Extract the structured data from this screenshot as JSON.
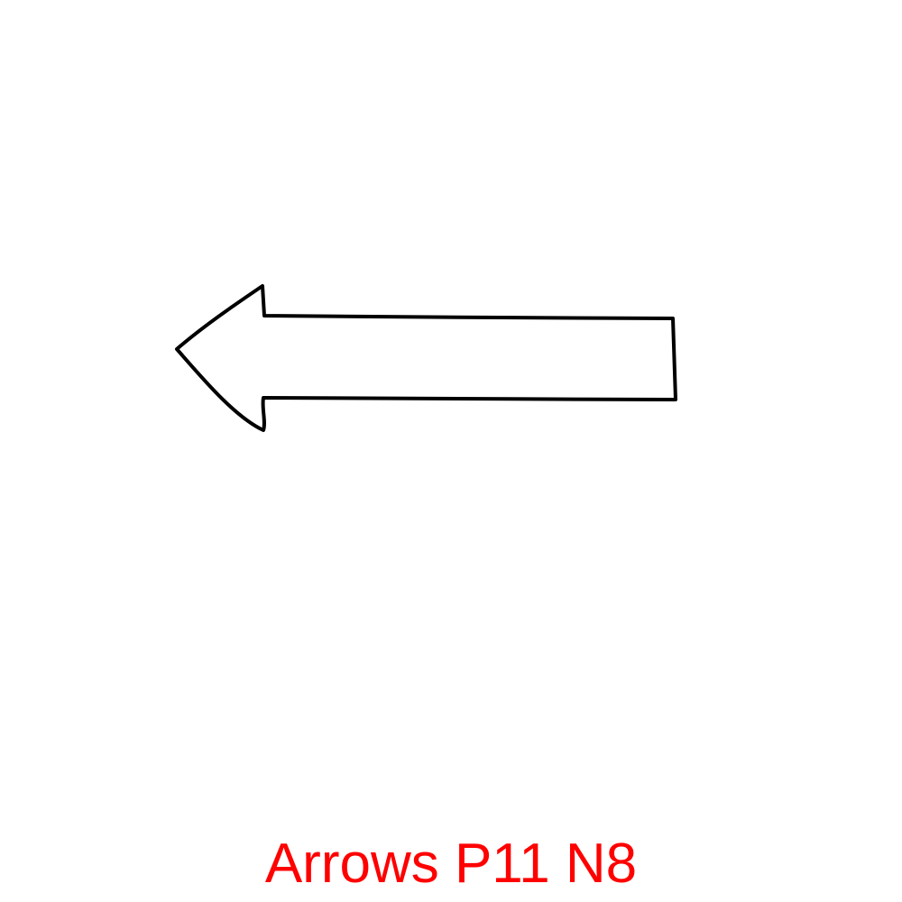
{
  "figure": {
    "caption": "Arrows P11 N8",
    "caption_color": "#ff0000",
    "arrow_icon": "left-arrow-outline-icon",
    "arrow_stroke_color": "#000000",
    "arrow_fill_color": "#ffffff",
    "arrow_direction": "left"
  }
}
